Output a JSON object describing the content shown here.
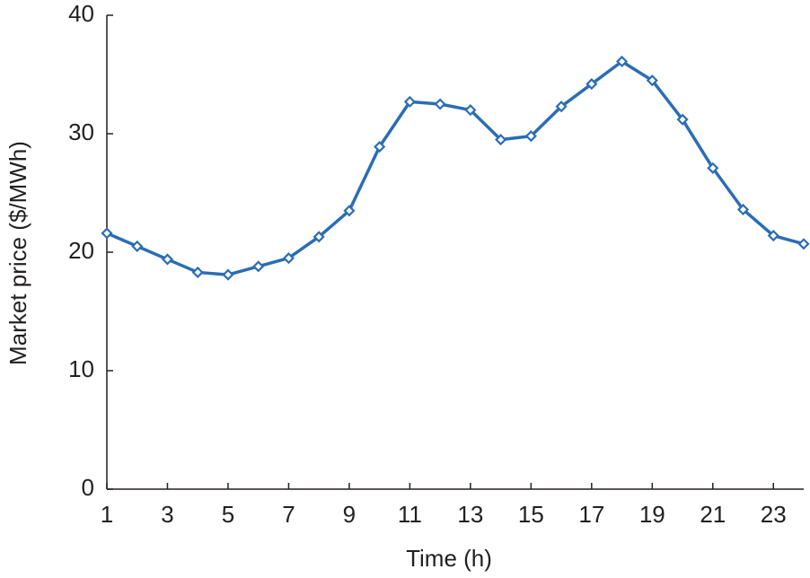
{
  "chart_data": {
    "type": "line",
    "x_label": "Time (h)",
    "y_label": "Market price ($/MWh)",
    "x": [
      1,
      2,
      3,
      4,
      5,
      6,
      7,
      8,
      9,
      10,
      11,
      12,
      13,
      14,
      15,
      16,
      17,
      18,
      19,
      20,
      21,
      22,
      23,
      24
    ],
    "series": [
      {
        "color": "#2a6db5",
        "values": [
          21.6,
          20.5,
          19.4,
          18.3,
          18.1,
          18.8,
          19.5,
          21.3,
          23.5,
          28.9,
          32.7,
          32.5,
          32.0,
          29.5,
          29.8,
          32.3,
          34.2,
          36.1,
          34.5,
          31.2,
          27.1,
          23.6,
          21.4,
          20.7
        ]
      }
    ],
    "xlim": [
      1,
      24
    ],
    "xticks": [
      1,
      3,
      5,
      7,
      9,
      11,
      13,
      15,
      17,
      19,
      21,
      23
    ],
    "ylim": [
      0,
      40
    ],
    "yticks": [
      0,
      10,
      20,
      30,
      40
    ],
    "grid": false,
    "marker": "diamond"
  }
}
